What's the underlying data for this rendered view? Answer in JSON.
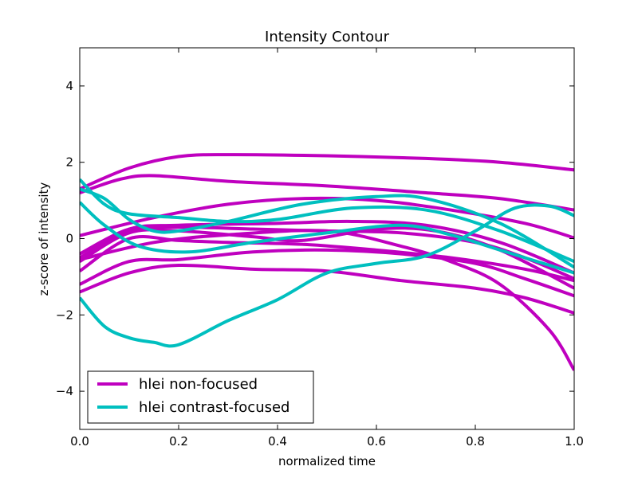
{
  "chart_data": {
    "type": "line",
    "title": "Intensity Contour",
    "xlabel": "normalized time",
    "ylabel": "z-score of intensity",
    "xlim": [
      0.0,
      1.0
    ],
    "ylim": [
      -5,
      5
    ],
    "x_ticks": [
      0.0,
      0.2,
      0.4,
      0.6,
      0.8,
      1.0
    ],
    "x_tick_labels": [
      "0.0",
      "0.2",
      "0.4",
      "0.6",
      "0.8",
      "1.0"
    ],
    "y_ticks": [
      -4,
      -2,
      0,
      2,
      4
    ],
    "y_tick_labels": [
      "−4",
      "−2",
      "0",
      "2",
      "4"
    ],
    "grid": false,
    "legend_position": "lower-left",
    "legend": [
      {
        "label": "hlei non-focused",
        "color": "#bf00bf"
      },
      {
        "label": "hlei contrast-focused",
        "color": "#00bfbf"
      }
    ],
    "series": [
      {
        "group": "hlei non-focused",
        "color": "#bf00bf",
        "points": [
          [
            0.0,
            1.3
          ],
          [
            0.1,
            1.85
          ],
          [
            0.2,
            2.15
          ],
          [
            0.3,
            2.2
          ],
          [
            0.5,
            2.17
          ],
          [
            0.7,
            2.1
          ],
          [
            0.85,
            2.0
          ],
          [
            1.0,
            1.8
          ]
        ]
      },
      {
        "group": "hlei non-focused",
        "color": "#bf00bf",
        "points": [
          [
            0.0,
            1.2
          ],
          [
            0.08,
            1.55
          ],
          [
            0.15,
            1.65
          ],
          [
            0.3,
            1.5
          ],
          [
            0.5,
            1.38
          ],
          [
            0.7,
            1.2
          ],
          [
            0.85,
            1.05
          ],
          [
            1.0,
            0.75
          ]
        ]
      },
      {
        "group": "hlei non-focused",
        "color": "#bf00bf",
        "points": [
          [
            0.0,
            0.08
          ],
          [
            0.15,
            0.55
          ],
          [
            0.3,
            0.9
          ],
          [
            0.45,
            1.05
          ],
          [
            0.6,
            1.0
          ],
          [
            0.75,
            0.75
          ],
          [
            0.9,
            0.4
          ],
          [
            1.0,
            0.02
          ]
        ]
      },
      {
        "group": "hlei non-focused",
        "color": "#bf00bf",
        "points": [
          [
            0.0,
            -0.4
          ],
          [
            0.1,
            0.25
          ],
          [
            0.2,
            0.35
          ],
          [
            0.4,
            0.4
          ],
          [
            0.55,
            0.45
          ],
          [
            0.7,
            0.35
          ],
          [
            0.85,
            -0.1
          ],
          [
            1.0,
            -0.9
          ]
        ]
      },
      {
        "group": "hlei non-focused",
        "color": "#bf00bf",
        "points": [
          [
            0.0,
            -0.5
          ],
          [
            0.1,
            0.2
          ],
          [
            0.2,
            0.3
          ],
          [
            0.35,
            0.25
          ],
          [
            0.5,
            0.2
          ],
          [
            0.65,
            0.15
          ],
          [
            0.8,
            -0.1
          ],
          [
            0.9,
            -0.5
          ],
          [
            1.0,
            -1.05
          ]
        ]
      },
      {
        "group": "hlei non-focused",
        "color": "#bf00bf",
        "points": [
          [
            0.0,
            -0.6
          ],
          [
            0.1,
            0.15
          ],
          [
            0.2,
            0.2
          ],
          [
            0.35,
            0.05
          ],
          [
            0.45,
            -0.05
          ],
          [
            0.6,
            0.25
          ],
          [
            0.72,
            0.2
          ],
          [
            0.85,
            -0.3
          ],
          [
            1.0,
            -1.3
          ]
        ]
      },
      {
        "group": "hlei non-focused",
        "color": "#bf00bf",
        "points": [
          [
            0.0,
            -0.85
          ],
          [
            0.1,
            0.0
          ],
          [
            0.2,
            -0.05
          ],
          [
            0.3,
            -0.1
          ],
          [
            0.45,
            -0.15
          ],
          [
            0.6,
            -0.3
          ],
          [
            0.75,
            -0.5
          ],
          [
            0.9,
            -0.8
          ],
          [
            1.0,
            -1.1
          ]
        ]
      },
      {
        "group": "hlei non-focused",
        "color": "#bf00bf",
        "points": [
          [
            0.0,
            -1.2
          ],
          [
            0.1,
            -0.6
          ],
          [
            0.2,
            -0.55
          ],
          [
            0.35,
            -0.35
          ],
          [
            0.5,
            -0.3
          ],
          [
            0.65,
            -0.4
          ],
          [
            0.8,
            -0.65
          ],
          [
            0.9,
            -1.05
          ],
          [
            1.0,
            -1.5
          ]
        ]
      },
      {
        "group": "hlei non-focused",
        "color": "#bf00bf",
        "points": [
          [
            0.0,
            -1.4
          ],
          [
            0.1,
            -0.9
          ],
          [
            0.2,
            -0.7
          ],
          [
            0.35,
            -0.8
          ],
          [
            0.5,
            -0.85
          ],
          [
            0.65,
            -1.1
          ],
          [
            0.8,
            -1.3
          ],
          [
            0.9,
            -1.55
          ],
          [
            1.0,
            -1.95
          ]
        ]
      },
      {
        "group": "hlei non-focused",
        "color": "#bf00bf",
        "points": [
          [
            0.0,
            -0.55
          ],
          [
            0.15,
            -0.1
          ],
          [
            0.3,
            0.1
          ],
          [
            0.5,
            0.2
          ],
          [
            0.65,
            -0.2
          ],
          [
            0.75,
            -0.6
          ],
          [
            0.85,
            -1.2
          ],
          [
            0.95,
            -2.4
          ],
          [
            1.0,
            -3.45
          ]
        ]
      },
      {
        "group": "hlei contrast-focused",
        "color": "#00bfbf",
        "points": [
          [
            0.0,
            1.55
          ],
          [
            0.05,
            0.9
          ],
          [
            0.1,
            0.65
          ],
          [
            0.2,
            0.55
          ],
          [
            0.3,
            0.45
          ],
          [
            0.4,
            0.5
          ],
          [
            0.55,
            0.8
          ],
          [
            0.7,
            0.75
          ],
          [
            0.85,
            0.2
          ],
          [
            1.0,
            -0.6
          ]
        ]
      },
      {
        "group": "hlei contrast-focused",
        "color": "#00bfbf",
        "points": [
          [
            0.0,
            1.3
          ],
          [
            0.05,
            1.05
          ],
          [
            0.1,
            0.5
          ],
          [
            0.15,
            0.2
          ],
          [
            0.2,
            0.2
          ],
          [
            0.3,
            0.45
          ],
          [
            0.45,
            0.9
          ],
          [
            0.6,
            1.1
          ],
          [
            0.7,
            1.05
          ],
          [
            0.85,
            0.4
          ],
          [
            1.0,
            -0.75
          ]
        ]
      },
      {
        "group": "hlei contrast-focused",
        "color": "#00bfbf",
        "points": [
          [
            0.0,
            0.95
          ],
          [
            0.05,
            0.35
          ],
          [
            0.12,
            -0.2
          ],
          [
            0.22,
            -0.35
          ],
          [
            0.35,
            -0.1
          ],
          [
            0.5,
            0.15
          ],
          [
            0.65,
            0.35
          ],
          [
            0.75,
            0.1
          ],
          [
            0.85,
            -0.3
          ],
          [
            1.0,
            -0.9
          ]
        ]
      },
      {
        "group": "hlei contrast-focused",
        "color": "#00bfbf",
        "points": [
          [
            0.0,
            -1.55
          ],
          [
            0.05,
            -2.3
          ],
          [
            0.1,
            -2.6
          ],
          [
            0.15,
            -2.72
          ],
          [
            0.2,
            -2.78
          ],
          [
            0.3,
            -2.15
          ],
          [
            0.4,
            -1.6
          ],
          [
            0.5,
            -0.9
          ],
          [
            0.6,
            -0.65
          ],
          [
            0.7,
            -0.45
          ],
          [
            0.8,
            0.2
          ],
          [
            0.88,
            0.8
          ],
          [
            0.95,
            0.85
          ],
          [
            1.0,
            0.6
          ]
        ]
      }
    ]
  }
}
